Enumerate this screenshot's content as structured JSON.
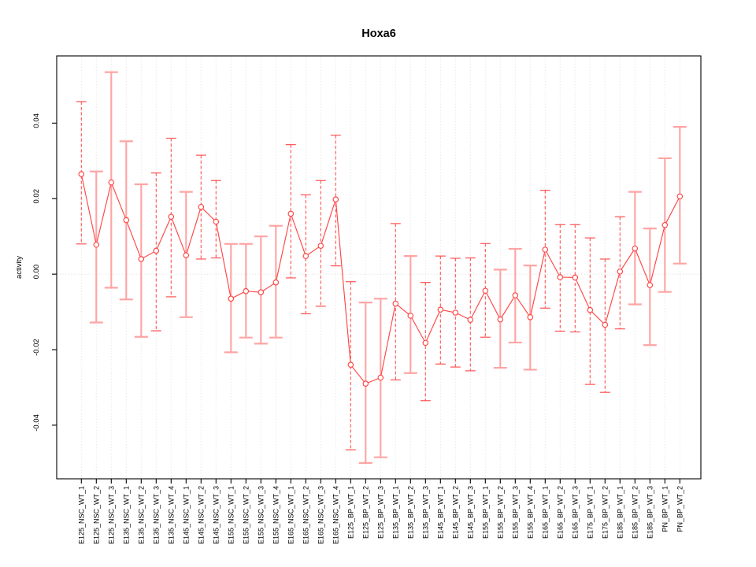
{
  "window": {
    "background": "#ffffff"
  },
  "chart_data": {
    "type": "line",
    "title": "Hoxa6",
    "xlabel": "",
    "ylabel": "activity",
    "ylim": [
      -0.0542,
      0.0578
    ],
    "ytick_values": [
      -0.04,
      -0.02,
      0.0,
      0.02,
      0.04
    ],
    "ytick_labels": [
      "-0.04",
      "-0.02",
      "0.00",
      "0.02",
      "0.04"
    ],
    "grid": "vertical-dotted",
    "zero_line": true,
    "legend_position": "none",
    "marker": "open-circle",
    "categories": [
      "E125_NSC_WT_1",
      "E125_NSC_WT_2",
      "E125_NSC_WT_3",
      "E135_NSC_WT_1",
      "E135_NSC_WT_2",
      "E135_NSC_WT_3",
      "E135_NSC_WT_4",
      "E145_NSC_WT_1",
      "E145_NSC_WT_2",
      "E145_NSC_WT_3",
      "E155_NSC_WT_1",
      "E155_NSC_WT_2",
      "E155_NSC_WT_3",
      "E155_NSC_WT_4",
      "E165_NSC_WT_1",
      "E165_NSC_WT_2",
      "E165_NSC_WT_3",
      "E165_NSC_WT_4",
      "E125_BP_WT_1",
      "E125_BP_WT_2",
      "E125_BP_WT_3",
      "E135_BP_WT_1",
      "E135_BP_WT_2",
      "E135_BP_WT_3",
      "E145_BP_WT_1",
      "E145_BP_WT_2",
      "E145_BP_WT_3",
      "E155_BP_WT_1",
      "E155_BP_WT_2",
      "E155_BP_WT_3",
      "E155_BP_WT_4",
      "E165_BP_WT_1",
      "E165_BP_WT_2",
      "E165_BP_WT_3",
      "E175_BP_WT_1",
      "E175_BP_WT_2",
      "E185_BP_WT_1",
      "E185_BP_WT_2",
      "E185_BP_WT_3",
      "PN_BP_WT_1",
      "PN_BP_WT_2"
    ],
    "series": [
      {
        "name": "activity",
        "values": [
          0.0265,
          0.0078,
          0.0243,
          0.0143,
          0.004,
          0.0062,
          0.0152,
          0.005,
          0.0178,
          0.0139,
          -0.0065,
          -0.0045,
          -0.0048,
          -0.0022,
          0.016,
          0.0048,
          0.0075,
          0.0198,
          -0.024,
          -0.029,
          -0.0274,
          -0.0078,
          -0.011,
          -0.0182,
          -0.0094,
          -0.0102,
          -0.0121,
          -0.0044,
          -0.012,
          -0.0056,
          -0.0114,
          0.0065,
          -0.0008,
          -0.0009,
          -0.0095,
          -0.0134,
          0.0007,
          0.0068,
          -0.0029,
          0.013,
          0.0206
        ],
        "ci_low": [
          0.008,
          -0.0128,
          -0.0036,
          -0.0067,
          -0.0166,
          -0.015,
          -0.006,
          -0.0114,
          0.004,
          0.0043,
          -0.0207,
          -0.0168,
          -0.0184,
          -0.0168,
          -0.001,
          -0.0105,
          -0.0085,
          0.0022,
          -0.0465,
          -0.05,
          -0.0485,
          -0.028,
          -0.0262,
          -0.0335,
          -0.0238,
          -0.0246,
          -0.0256,
          -0.0167,
          -0.0248,
          -0.0181,
          -0.0253,
          -0.009,
          -0.0151,
          -0.0153,
          -0.0292,
          -0.0313,
          -0.0145,
          -0.008,
          -0.0188,
          -0.0047,
          0.0028
        ],
        "ci_high": [
          0.0457,
          0.0272,
          0.0535,
          0.0352,
          0.0238,
          0.0268,
          0.036,
          0.0218,
          0.0315,
          0.0248,
          0.008,
          0.008,
          0.01,
          0.0128,
          0.0343,
          0.021,
          0.0248,
          0.0368,
          -0.002,
          -0.0075,
          -0.0065,
          0.0134,
          0.0048,
          -0.0022,
          0.0048,
          0.0042,
          0.0043,
          0.0081,
          0.0012,
          0.0067,
          0.0023,
          0.0222,
          0.0131,
          0.0131,
          0.0096,
          0.004,
          0.0152,
          0.0218,
          0.0121,
          0.0307,
          0.039
        ],
        "bar_style": [
          "dashed",
          "solid",
          "solid",
          "solid",
          "solid",
          "dashed",
          "dashed",
          "solid",
          "dashed",
          "dashed",
          "solid",
          "solid",
          "solid",
          "solid",
          "dashed",
          "dashed",
          "dashed",
          "dashed",
          "dashed",
          "solid",
          "solid",
          "dashed",
          "solid",
          "dashed",
          "dashed",
          "dashed",
          "dashed",
          "dashed",
          "solid",
          "solid",
          "solid",
          "dashed",
          "dashed",
          "dashed",
          "dashed",
          "dashed",
          "dashed",
          "solid",
          "solid",
          "solid",
          "solid"
        ]
      }
    ],
    "colors": {
      "point_and_line": "#ff4545",
      "errorbar_dashed": "#ff5252",
      "errorbar_solid": "#ffa4a4",
      "gridline": "#e0e0e0",
      "zero_line": "#d9d9d9",
      "frame": "#000000"
    }
  }
}
